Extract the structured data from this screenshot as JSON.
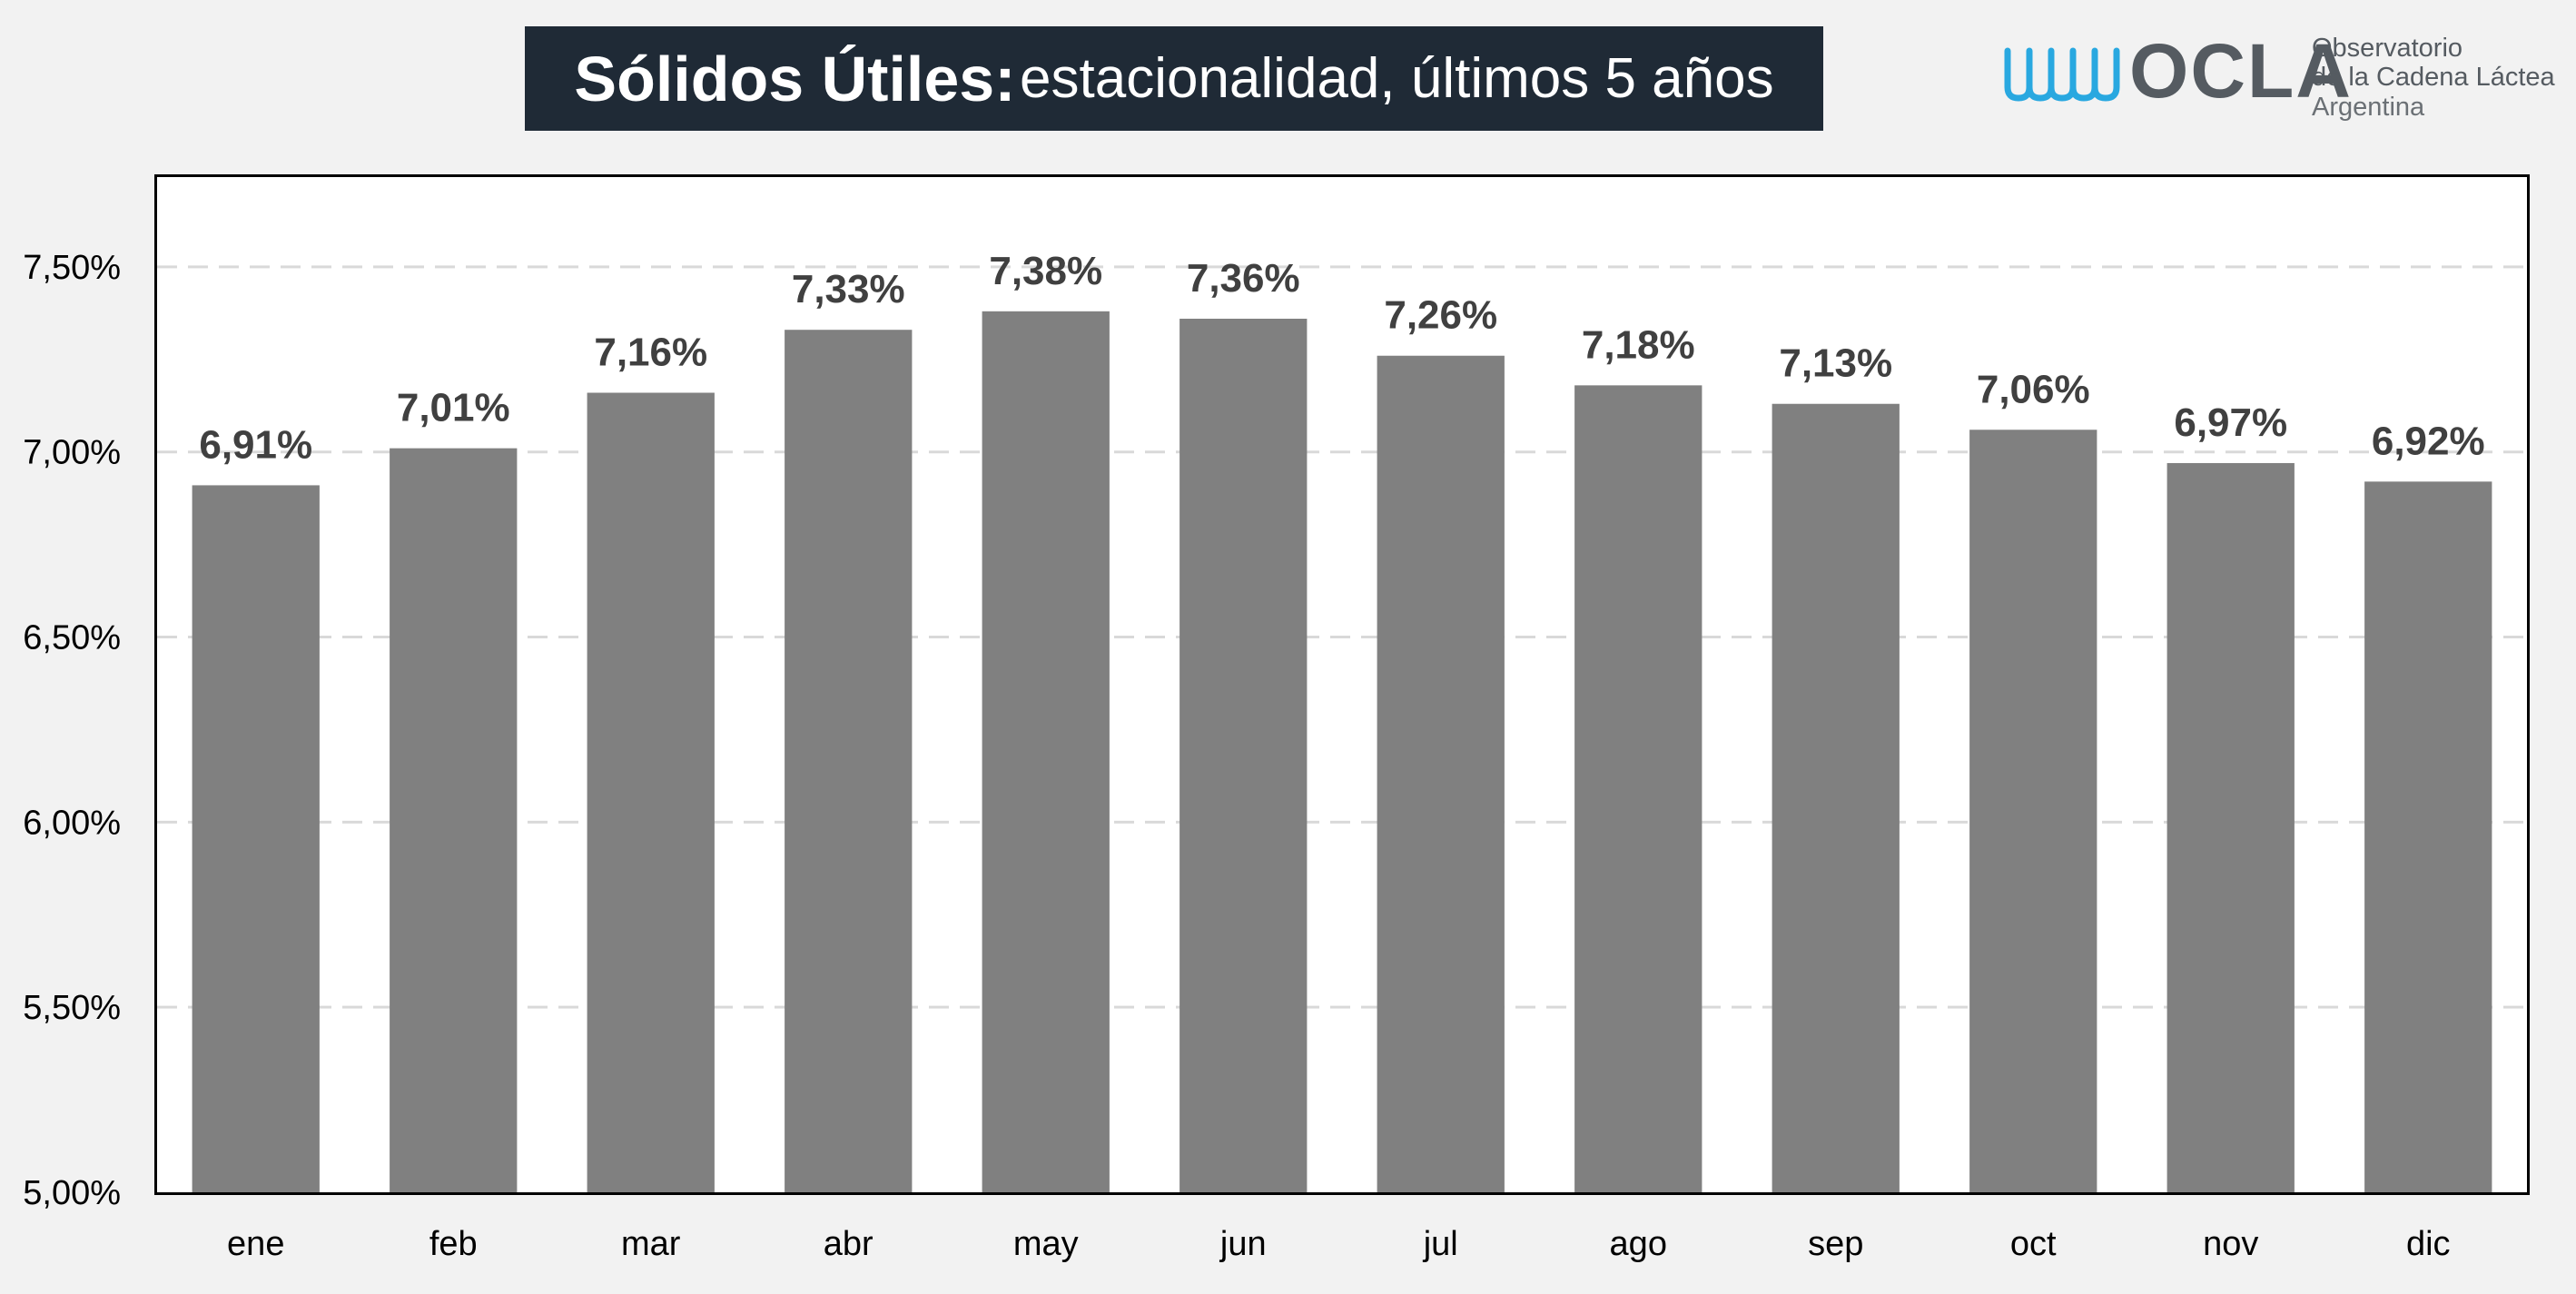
{
  "header": {
    "title_bold": "Sólidos Útiles:",
    "title_rest": "estacionalidad, últimos 5 años"
  },
  "logo": {
    "name": "OCLA",
    "line1": "Observatorio",
    "line2": "de la Cadena Láctea",
    "line3": "Argentina",
    "wave_color": "#29a8e0"
  },
  "chart_data": {
    "type": "bar",
    "title": "Sólidos Útiles: estacionalidad, últimos 5 años",
    "categories": [
      "ene",
      "feb",
      "mar",
      "abr",
      "may",
      "jun",
      "jul",
      "ago",
      "sep",
      "oct",
      "nov",
      "dic"
    ],
    "values": [
      6.91,
      7.01,
      7.16,
      7.33,
      7.38,
      7.36,
      7.26,
      7.18,
      7.13,
      7.06,
      6.97,
      6.92
    ],
    "data_labels": [
      "6,91%",
      "7,01%",
      "7,16%",
      "7,33%",
      "7,38%",
      "7,36%",
      "7,26%",
      "7,18%",
      "7,13%",
      "7,06%",
      "6,97%",
      "6,92%"
    ],
    "ylim": [
      5.0,
      7.75
    ],
    "yticks": [
      5.0,
      5.5,
      6.0,
      6.5,
      7.0,
      7.5
    ],
    "ytick_labels": [
      "5,00%",
      "5,50%",
      "6,00%",
      "6,50%",
      "7,00%",
      "7,50%"
    ],
    "grid": true,
    "bar_color": "#808080",
    "label_color": "#404040",
    "xlabel": "",
    "ylabel": ""
  }
}
